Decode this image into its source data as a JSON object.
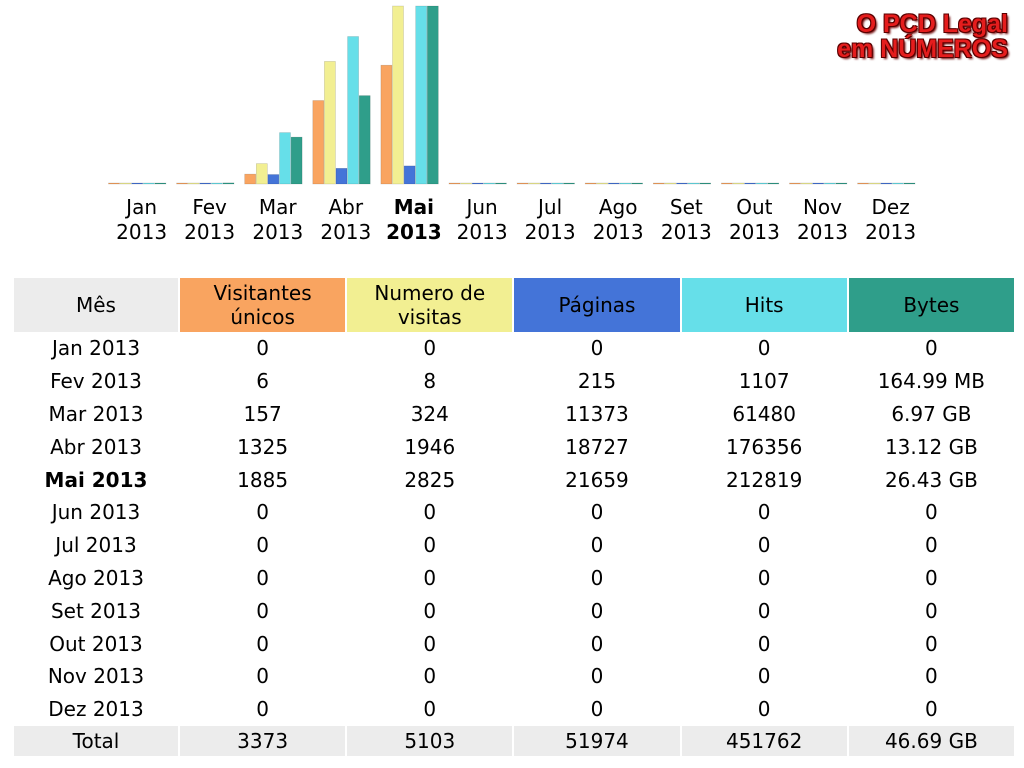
{
  "branding": {
    "line1": "O PCD Legal",
    "line2": "em NÚMEROS"
  },
  "colors": {
    "visitors": "#f9a460",
    "visits": "#f2ef92",
    "pages": "#4474d8",
    "hits": "#66dfe9",
    "bytes": "#2f9e8a",
    "header_month_bg": "#ececec",
    "total_bg": "#ececec"
  },
  "selected_month": "Mai 2013",
  "chart_data": {
    "type": "bar",
    "categories": [
      [
        "Jan",
        "2013"
      ],
      [
        "Fev",
        "2013"
      ],
      [
        "Mar",
        "2013"
      ],
      [
        "Abr",
        "2013"
      ],
      [
        "Mai",
        "2013"
      ],
      [
        "Jun",
        "2013"
      ],
      [
        "Jul",
        "2013"
      ],
      [
        "Ago",
        "2013"
      ],
      [
        "Set",
        "2013"
      ],
      [
        "Out",
        "2013"
      ],
      [
        "Nov",
        "2013"
      ],
      [
        "Dez",
        "2013"
      ]
    ],
    "series": [
      {
        "name": "Visitantes únicos",
        "key": "visitors",
        "values": [
          0,
          6,
          157,
          1325,
          1885,
          0,
          0,
          0,
          0,
          0,
          0,
          0
        ]
      },
      {
        "name": "Numero de visitas",
        "key": "visits",
        "values": [
          0,
          8,
          324,
          1946,
          2825,
          0,
          0,
          0,
          0,
          0,
          0,
          0
        ]
      },
      {
        "name": "Páginas",
        "key": "pages",
        "values": [
          0,
          215,
          11373,
          18727,
          21659,
          0,
          0,
          0,
          0,
          0,
          0,
          0
        ]
      },
      {
        "name": "Hits",
        "key": "hits",
        "values": [
          0,
          1107,
          61480,
          176356,
          212819,
          0,
          0,
          0,
          0,
          0,
          0,
          0
        ]
      },
      {
        "name": "Bytes",
        "key": "bytes",
        "values": [
          0,
          0.161,
          6.97,
          13.12,
          26.43,
          0,
          0,
          0,
          0,
          0,
          0,
          0
        ],
        "unit": "GB"
      }
    ],
    "scale_groups": [
      [
        "visitors",
        "visits"
      ],
      [
        "pages",
        "hits"
      ],
      [
        "bytes"
      ]
    ]
  },
  "table": {
    "headers": {
      "month": "Mês",
      "visitors": [
        "Visitantes",
        "únicos"
      ],
      "visits": [
        "Numero de",
        "visitas"
      ],
      "pages": "Páginas",
      "hits": "Hits",
      "bytes": "Bytes"
    },
    "rows": [
      {
        "month": "Jan 2013",
        "visitors": "0",
        "visits": "0",
        "pages": "0",
        "hits": "0",
        "bytes": "0"
      },
      {
        "month": "Fev 2013",
        "visitors": "6",
        "visits": "8",
        "pages": "215",
        "hits": "1107",
        "bytes": "164.99 MB"
      },
      {
        "month": "Mar 2013",
        "visitors": "157",
        "visits": "324",
        "pages": "11373",
        "hits": "61480",
        "bytes": "6.97 GB"
      },
      {
        "month": "Abr 2013",
        "visitors": "1325",
        "visits": "1946",
        "pages": "18727",
        "hits": "176356",
        "bytes": "13.12 GB"
      },
      {
        "month": "Mai 2013",
        "visitors": "1885",
        "visits": "2825",
        "pages": "21659",
        "hits": "212819",
        "bytes": "26.43 GB"
      },
      {
        "month": "Jun 2013",
        "visitors": "0",
        "visits": "0",
        "pages": "0",
        "hits": "0",
        "bytes": "0"
      },
      {
        "month": "Jul 2013",
        "visitors": "0",
        "visits": "0",
        "pages": "0",
        "hits": "0",
        "bytes": "0"
      },
      {
        "month": "Ago 2013",
        "visitors": "0",
        "visits": "0",
        "pages": "0",
        "hits": "0",
        "bytes": "0"
      },
      {
        "month": "Set 2013",
        "visitors": "0",
        "visits": "0",
        "pages": "0",
        "hits": "0",
        "bytes": "0"
      },
      {
        "month": "Out 2013",
        "visitors": "0",
        "visits": "0",
        "pages": "0",
        "hits": "0",
        "bytes": "0"
      },
      {
        "month": "Nov 2013",
        "visitors": "0",
        "visits": "0",
        "pages": "0",
        "hits": "0",
        "bytes": "0"
      },
      {
        "month": "Dez 2013",
        "visitors": "0",
        "visits": "0",
        "pages": "0",
        "hits": "0",
        "bytes": "0"
      }
    ],
    "total": {
      "month": "Total",
      "visitors": "3373",
      "visits": "5103",
      "pages": "51974",
      "hits": "451762",
      "bytes": "46.69 GB"
    }
  }
}
